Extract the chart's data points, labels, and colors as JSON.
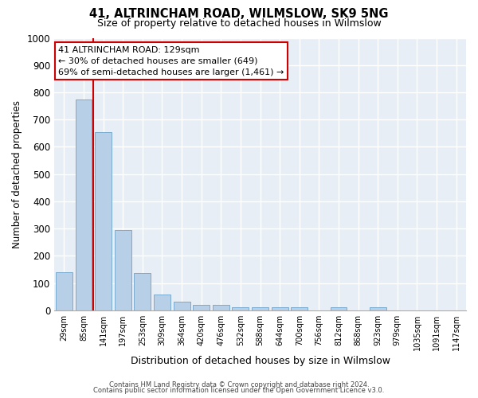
{
  "title": "41, ALTRINCHAM ROAD, WILMSLOW, SK9 5NG",
  "subtitle": "Size of property relative to detached houses in Wilmslow",
  "xlabel": "Distribution of detached houses by size in Wilmslow",
  "ylabel": "Number of detached properties",
  "bar_color": "#b8cfe8",
  "bar_edge_color": "#7aaad0",
  "bg_color": "#e8eef5",
  "grid_color": "white",
  "categories": [
    "29sqm",
    "85sqm",
    "141sqm",
    "197sqm",
    "253sqm",
    "309sqm",
    "364sqm",
    "420sqm",
    "476sqm",
    "532sqm",
    "588sqm",
    "644sqm",
    "700sqm",
    "756sqm",
    "812sqm",
    "868sqm",
    "923sqm",
    "979sqm",
    "1035sqm",
    "1091sqm",
    "1147sqm"
  ],
  "values": [
    140,
    775,
    655,
    295,
    138,
    57,
    33,
    20,
    20,
    10,
    10,
    10,
    10,
    0,
    10,
    0,
    10,
    0,
    0,
    0,
    0
  ],
  "vline_index": 1.5,
  "annotation_text": "41 ALTRINCHAM ROAD: 129sqm\n← 30% of detached houses are smaller (649)\n69% of semi-detached houses are larger (1,461) →",
  "annotation_box_color": "white",
  "annotation_box_edge_color": "#cc0000",
  "vline_color": "#cc0000",
  "ylim": [
    0,
    1000
  ],
  "yticks": [
    0,
    100,
    200,
    300,
    400,
    500,
    600,
    700,
    800,
    900,
    1000
  ],
  "footnote1": "Contains HM Land Registry data © Crown copyright and database right 2024.",
  "footnote2": "Contains public sector information licensed under the Open Government Licence v3.0."
}
